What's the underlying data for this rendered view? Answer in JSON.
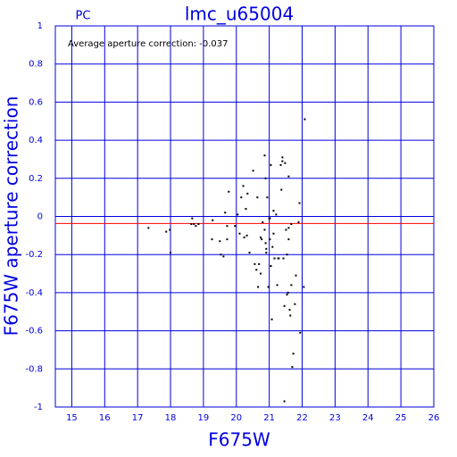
{
  "chart_data": {
    "type": "scatter",
    "title": "lmc_u65004",
    "subtitle": "PC",
    "annotation": "Average aperture correction: -0.037",
    "x_label": "F675W",
    "y_label": "F675W aperture correction",
    "xlim": [
      14.5,
      26
    ],
    "ylim": [
      -1,
      1
    ],
    "xticks": [
      15,
      16,
      17,
      18,
      19,
      20,
      21,
      22,
      23,
      24,
      25,
      26
    ],
    "yticks": [
      -1,
      -0.8,
      -0.6,
      -0.4,
      -0.2,
      0,
      0.2,
      0.4,
      0.6,
      0.8,
      1
    ],
    "grid": true,
    "grid_color": "#0000e0",
    "color": "#000000",
    "reference_line": {
      "value": -0.037,
      "color": "#ff0000"
    },
    "x": [
      17.33,
      17.87,
      17.98,
      18.0,
      18.66,
      18.71,
      18.77,
      18.63,
      18.85,
      19.28,
      19.26,
      19.5,
      19.53,
      19.61,
      19.66,
      19.77,
      19.72,
      19.72,
      19.96,
      20.04,
      20.1,
      20.21,
      20.15,
      20.24,
      20.32,
      20.34,
      20.29,
      20.4,
      20.51,
      20.56,
      20.61,
      20.64,
      20.66,
      20.69,
      20.74,
      20.74,
      20.77,
      20.8,
      20.86,
      20.89,
      20.86,
      20.89,
      20.91,
      20.91,
      20.94,
      20.97,
      21.0,
      21.02,
      21.02,
      21.05,
      21.05,
      21.08,
      21.1,
      21.13,
      21.13,
      21.16,
      21.21,
      21.24,
      21.27,
      21.29,
      21.35,
      21.37,
      21.4,
      21.4,
      21.43,
      21.46,
      21.46,
      21.48,
      21.51,
      21.54,
      21.54,
      21.57,
      21.59,
      21.59,
      21.59,
      21.62,
      21.64,
      21.67,
      21.67,
      21.7,
      21.73,
      21.78,
      21.81,
      21.89,
      21.92,
      21.94,
      22.05,
      22.08
    ],
    "values": [
      -0.06,
      -0.08,
      -0.07,
      -0.19,
      -0.01,
      -0.04,
      -0.05,
      -0.04,
      -0.04,
      -0.02,
      -0.12,
      -0.13,
      -0.2,
      -0.21,
      0.02,
      0.13,
      -0.05,
      -0.12,
      -0.05,
      0.01,
      -0.09,
      0.16,
      0.1,
      -0.11,
      -0.1,
      0.12,
      0.04,
      -0.19,
      0.24,
      -0.25,
      -0.28,
      0.1,
      -0.37,
      -0.25,
      -0.3,
      -0.11,
      -0.12,
      -0.03,
      0.32,
      0.2,
      -0.07,
      -0.14,
      -0.17,
      -0.19,
      0.1,
      -0.37,
      -0.01,
      -0.12,
      -0.01,
      -0.26,
      0.27,
      -0.54,
      -0.16,
      -0.09,
      0.03,
      -0.22,
      0.01,
      -0.36,
      -0.22,
      -0.22,
      0.27,
      0.14,
      0.31,
      0.29,
      -0.22,
      -0.47,
      -0.97,
      0.28,
      -0.07,
      -0.2,
      -0.41,
      -0.4,
      -0.06,
      -0.12,
      0.21,
      -0.49,
      -0.52,
      -0.04,
      -0.36,
      -0.79,
      -0.72,
      -0.46,
      -0.31,
      -0.03,
      0.07,
      -0.61,
      -0.37,
      0.51
    ]
  }
}
